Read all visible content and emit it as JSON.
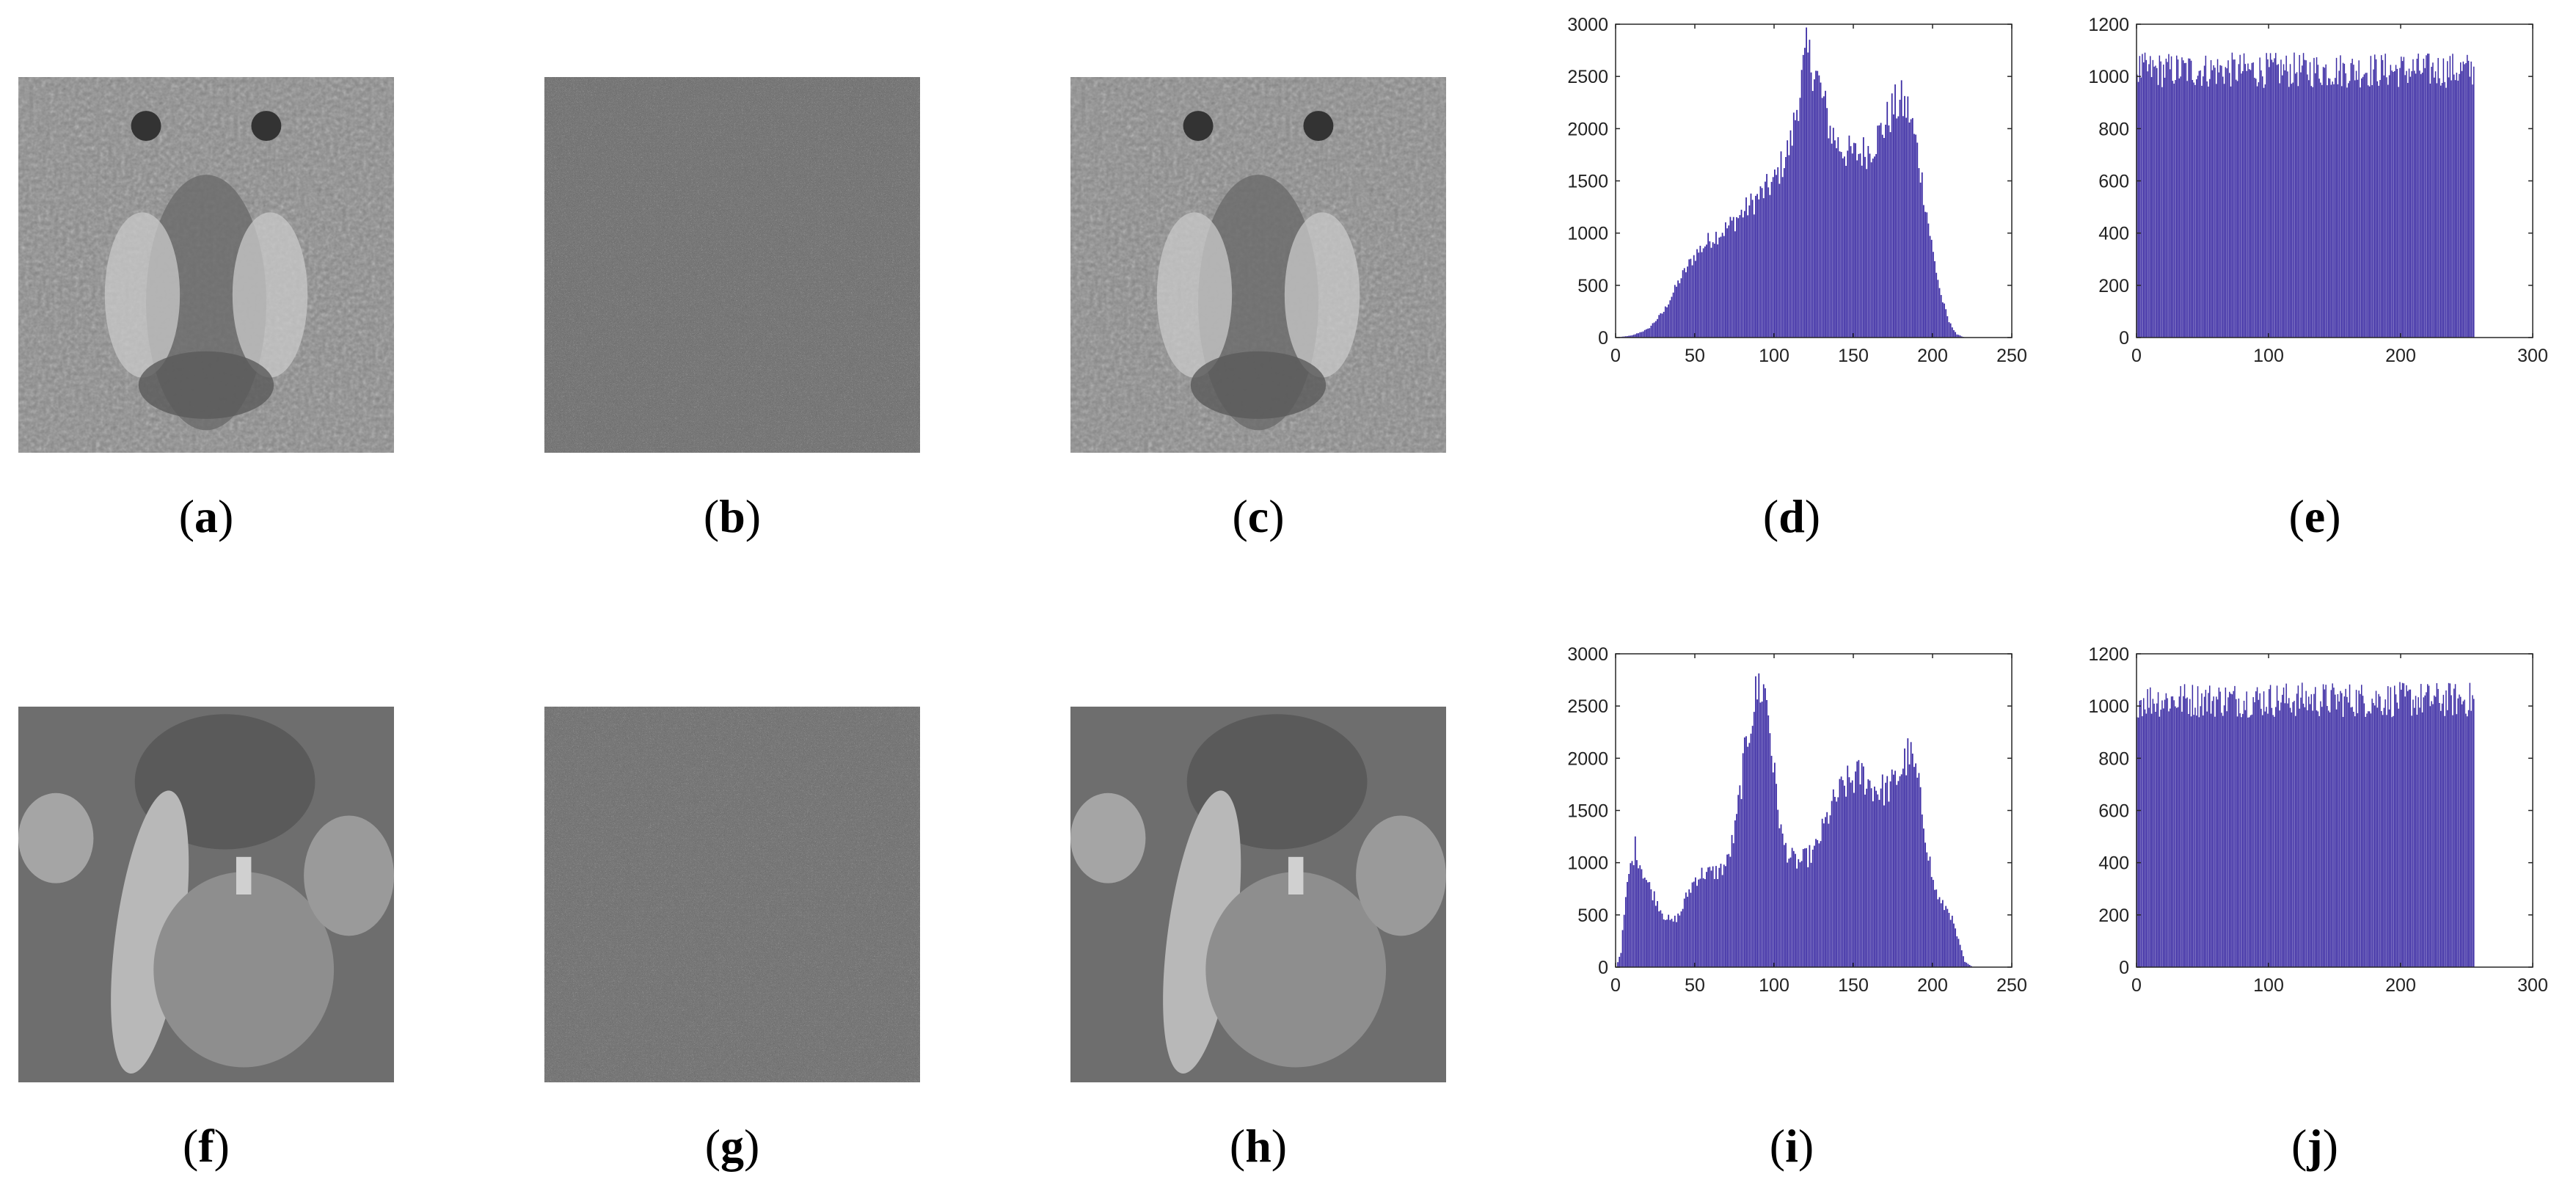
{
  "captions": {
    "a": "a",
    "b": "b",
    "c": "c",
    "d": "d",
    "e": "e",
    "f": "f",
    "g": "g",
    "h": "h",
    "i": "i",
    "j": "j"
  },
  "images": {
    "a": "baboon-plain-image",
    "b": "baboon-encrypted-noise",
    "c": "baboon-decrypted-image",
    "f": "peppers-plain-image",
    "g": "peppers-encrypted-noise",
    "h": "peppers-decrypted-image"
  },
  "colors": {
    "bar": "#3a2aa3",
    "axis": "#262626"
  },
  "chart_data": [
    {
      "id": "d",
      "type": "bar",
      "xlim": [
        0,
        250
      ],
      "ylim": [
        0,
        3000
      ],
      "xticks": [
        0,
        50,
        100,
        150,
        200,
        250
      ],
      "yticks": [
        0,
        500,
        1000,
        1500,
        2000,
        2500,
        3000
      ],
      "x": [
        0,
        10,
        20,
        30,
        40,
        50,
        60,
        70,
        80,
        90,
        100,
        110,
        115,
        120,
        125,
        130,
        135,
        140,
        145,
        150,
        160,
        170,
        175,
        180,
        185,
        190,
        195,
        200,
        205,
        210,
        215,
        220
      ],
      "y": [
        0,
        20,
        80,
        250,
        550,
        800,
        950,
        1050,
        1200,
        1350,
        1500,
        1850,
        2300,
        2700,
        2600,
        2300,
        2000,
        1850,
        1780,
        1750,
        1800,
        2050,
        2200,
        2250,
        2150,
        1800,
        1300,
        800,
        400,
        150,
        30,
        0
      ]
    },
    {
      "id": "e",
      "type": "bar",
      "xlim": [
        0,
        300
      ],
      "ylim": [
        0,
        1200
      ],
      "xticks": [
        0,
        100,
        200,
        300
      ],
      "yticks": [
        0,
        200,
        400,
        600,
        800,
        1000,
        1200
      ],
      "x_range": [
        0,
        255
      ],
      "mean_value": 1024,
      "peak_value": 1100
    },
    {
      "id": "i",
      "type": "bar",
      "xlim": [
        0,
        250
      ],
      "ylim": [
        0,
        3000
      ],
      "xticks": [
        0,
        50,
        100,
        150,
        200,
        250
      ],
      "yticks": [
        0,
        500,
        1000,
        1500,
        2000,
        2500,
        3000
      ],
      "x": [
        0,
        3,
        5,
        8,
        10,
        12,
        15,
        20,
        25,
        30,
        35,
        40,
        45,
        50,
        55,
        60,
        65,
        70,
        75,
        80,
        85,
        90,
        95,
        100,
        105,
        110,
        115,
        120,
        125,
        130,
        135,
        140,
        145,
        150,
        155,
        160,
        165,
        170,
        175,
        180,
        185,
        190,
        195,
        200,
        205,
        210,
        215,
        220,
        225
      ],
      "y": [
        0,
        150,
        500,
        900,
        1000,
        1150,
        1000,
        800,
        650,
        500,
        430,
        500,
        700,
        850,
        900,
        900,
        920,
        1000,
        1300,
        1900,
        2400,
        2700,
        2600,
        1800,
        1200,
        1050,
        1000,
        1050,
        1100,
        1300,
        1500,
        1650,
        1750,
        1800,
        1850,
        1750,
        1700,
        1700,
        1750,
        1900,
        2050,
        1800,
        1300,
        800,
        600,
        550,
        300,
        50,
        0
      ]
    },
    {
      "id": "j",
      "type": "bar",
      "xlim": [
        0,
        300
      ],
      "ylim": [
        0,
        1200
      ],
      "xticks": [
        0,
        100,
        200,
        300
      ],
      "yticks": [
        0,
        200,
        400,
        600,
        800,
        1000,
        1200
      ],
      "x_range": [
        0,
        255
      ],
      "mean_value": 1024,
      "peak_value": 1100
    }
  ]
}
